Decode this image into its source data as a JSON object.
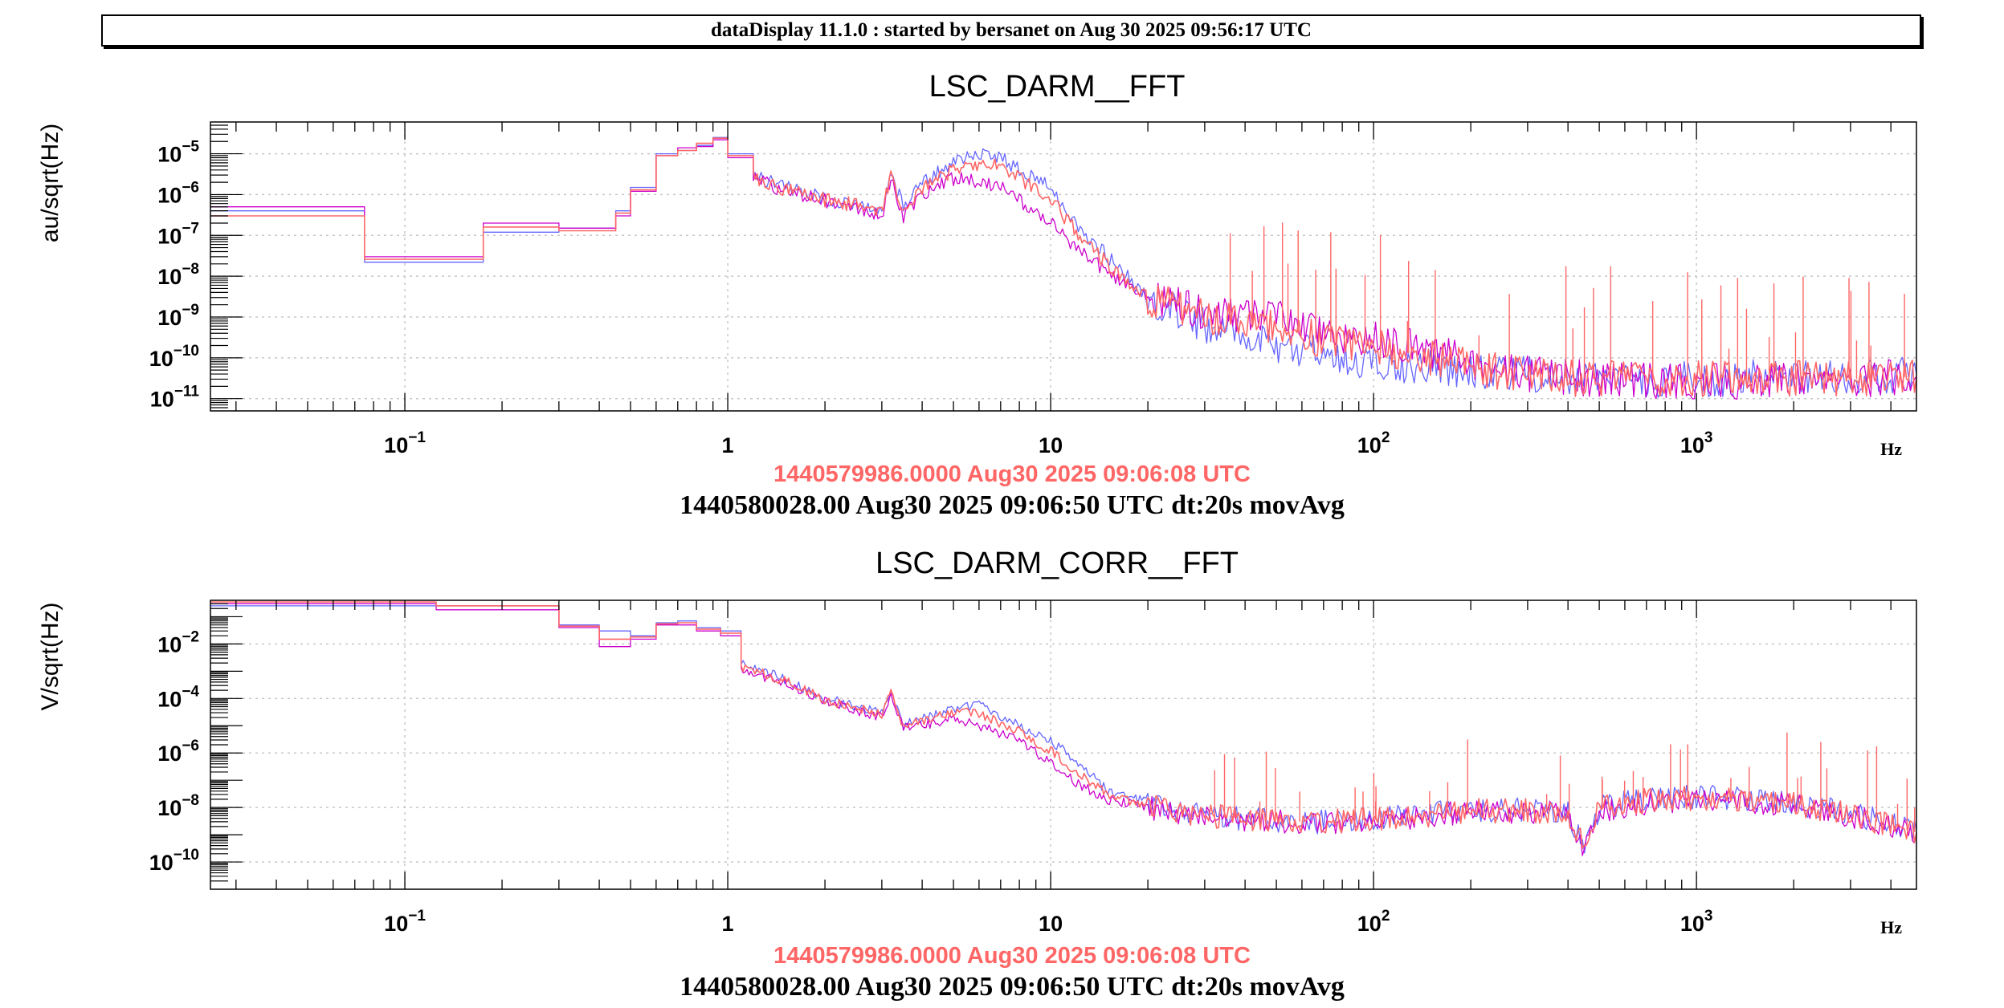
{
  "banner": {
    "text": "dataDisplay 11.1.0 : started by bersanet on Aug 30 2025 09:56:17 UTC"
  },
  "colors": {
    "ref1": "#6666ff",
    "ref2": "#cc00cc",
    "live": "#ff6666",
    "grid": "#c8c8c8",
    "stamp_ref": "#ff6666"
  },
  "chart_data": [
    {
      "type": "line",
      "title": "LSC_DARM__FFT",
      "ylabel": "au/sqrt(Hz)",
      "xlabel": "Hz",
      "xscale": "log",
      "yscale": "log",
      "xlim": [
        0.025,
        4800
      ],
      "ylim": [
        5e-12,
        6e-05
      ],
      "grid": true,
      "x_ticks": [
        {
          "value": 0.1,
          "base": "10",
          "exp": "−1"
        },
        {
          "value": 1,
          "base": "1",
          "exp": ""
        },
        {
          "value": 10,
          "base": "10",
          "exp": ""
        },
        {
          "value": 100,
          "base": "10",
          "exp": "2"
        },
        {
          "value": 1000,
          "base": "10",
          "exp": "3"
        }
      ],
      "y_ticks": [
        {
          "value": 1e-05,
          "base": "10",
          "exp": "−5"
        },
        {
          "value": 1e-06,
          "base": "10",
          "exp": "−6"
        },
        {
          "value": 1e-07,
          "base": "10",
          "exp": "−7"
        },
        {
          "value": 1e-08,
          "base": "10",
          "exp": "−8"
        },
        {
          "value": 1e-09,
          "base": "10",
          "exp": "−9"
        },
        {
          "value": 1e-10,
          "base": "10",
          "exp": "−10"
        },
        {
          "value": 1e-11,
          "base": "10",
          "exp": "−11"
        }
      ],
      "ref_timestamp": "1440579986.0000 Aug30 2025 09:06:08 UTC",
      "timestamp": "1440580028.00 Aug30 2025 09:06:50 UTC dt:20s movAvg",
      "series": [
        {
          "color": "#6666ff",
          "x": [
            0.025,
            0.0625,
            0.075,
            0.125,
            0.175,
            0.225,
            0.3,
            0.4,
            0.45,
            0.5,
            0.6,
            0.7,
            0.8,
            0.9,
            1,
            1.2,
            1.5,
            2,
            2.5,
            3,
            3.2,
            3.5,
            4,
            5,
            6,
            7,
            8,
            10,
            12,
            15,
            20,
            30,
            50,
            70,
            100,
            150,
            200,
            300,
            500,
            1000,
            2000,
            3000,
            4800
          ],
          "y": [
            4e-07,
            4e-07,
            2.2e-08,
            2.2e-08,
            1.2e-07,
            1.2e-07,
            1.5e-07,
            1.5e-07,
            4e-07,
            1.5e-06,
            1e-05,
            1.2e-05,
            1.6e-05,
            2.5e-05,
            1e-05,
            3e-06,
            1.5e-06,
            8e-07,
            6e-07,
            4e-07,
            3e-06,
            5e-07,
            2e-06,
            6e-06,
            1e-05,
            8e-06,
            4e-06,
            1.5e-06,
            2e-07,
            3e-08,
            3e-09,
            6e-10,
            2e-10,
            1.2e-10,
            7e-11,
            6e-11,
            5e-11,
            4e-11,
            3e-11,
            3e-11,
            3.5e-11,
            3.5e-11,
            4e-11
          ]
        },
        {
          "color": "#cc00cc",
          "x": [
            0.025,
            0.0625,
            0.075,
            0.125,
            0.175,
            0.225,
            0.3,
            0.4,
            0.45,
            0.5,
            0.6,
            0.7,
            0.8,
            0.9,
            1,
            1.2,
            1.5,
            2,
            2.5,
            3,
            3.2,
            3.5,
            4,
            5,
            6,
            7,
            8,
            10,
            12,
            15,
            20,
            30,
            50,
            70,
            100,
            150,
            200,
            300,
            500,
            1000,
            2000,
            3000,
            4800
          ],
          "y": [
            5e-07,
            5e-07,
            3e-08,
            3e-08,
            2e-07,
            2e-07,
            1.5e-07,
            1.5e-07,
            3e-07,
            1.2e-06,
            9e-06,
            1.4e-05,
            1.5e-05,
            2.2e-05,
            8e-06,
            2.5e-06,
            1.2e-06,
            7e-07,
            5e-07,
            3e-07,
            2.5e-06,
            3e-07,
            1e-06,
            2.5e-06,
            2e-06,
            1.5e-06,
            7e-07,
            2e-07,
            5e-08,
            1.2e-08,
            3e-09,
            1.3e-09,
            1e-09,
            4e-10,
            3e-10,
            1.6e-10,
            8e-11,
            4e-11,
            3e-11,
            2.5e-11,
            3e-11,
            3e-11,
            3.5e-11
          ]
        },
        {
          "color": "#ff6666",
          "x": [
            0.025,
            0.0625,
            0.075,
            0.125,
            0.175,
            0.225,
            0.3,
            0.4,
            0.45,
            0.5,
            0.6,
            0.7,
            0.8,
            0.9,
            1,
            1.2,
            1.5,
            2,
            2.5,
            3,
            3.2,
            3.5,
            4,
            5,
            6,
            7,
            8,
            10,
            12,
            15,
            20,
            30,
            50,
            70,
            100,
            150,
            200,
            300,
            500,
            1000,
            2000,
            3000,
            4800
          ],
          "y": [
            3e-07,
            3e-07,
            2.6e-08,
            2.6e-08,
            1.6e-07,
            1.6e-07,
            1.3e-07,
            1.3e-07,
            3.5e-07,
            1.3e-06,
            9e-06,
            1.2e-05,
            1.8e-05,
            2.4e-05,
            9e-06,
            2.8e-06,
            1.3e-06,
            7.5e-07,
            5.5e-07,
            3.5e-07,
            2.8e-06,
            4e-07,
            1.5e-06,
            4e-06,
            5e-06,
            5e-06,
            2.5e-06,
            8e-07,
            1.2e-07,
            2e-08,
            3e-09,
            1e-09,
            6e-10,
            2.5e-10,
            2e-10,
            1e-10,
            6e-11,
            3.5e-11,
            3e-11,
            3e-11,
            3e-11,
            3e-11,
            3.5e-11
          ]
        }
      ]
    },
    {
      "type": "line",
      "title": "LSC_DARM_CORR__FFT",
      "ylabel": "V/sqrt(Hz)",
      "xlabel": "Hz",
      "xscale": "log",
      "yscale": "log",
      "xlim": [
        0.025,
        4800
      ],
      "ylim": [
        1e-11,
        0.4
      ],
      "grid": true,
      "x_ticks": [
        {
          "value": 0.1,
          "base": "10",
          "exp": "−1"
        },
        {
          "value": 1,
          "base": "1",
          "exp": ""
        },
        {
          "value": 10,
          "base": "10",
          "exp": ""
        },
        {
          "value": 100,
          "base": "10",
          "exp": "2"
        },
        {
          "value": 1000,
          "base": "10",
          "exp": "3"
        }
      ],
      "y_ticks": [
        {
          "value": 0.01,
          "base": "10",
          "exp": "−2"
        },
        {
          "value": 0.0001,
          "base": "10",
          "exp": "−4"
        },
        {
          "value": 1e-06,
          "base": "10",
          "exp": "−6"
        },
        {
          "value": 1e-08,
          "base": "10",
          "exp": "−8"
        },
        {
          "value": 1e-10,
          "base": "10",
          "exp": "−10"
        }
      ],
      "ref_timestamp": "1440579986.0000 Aug30 2025 09:06:08 UTC",
      "timestamp": "1440580028.00 Aug30 2025 09:06:50 UTC dt:20s movAvg",
      "series": [
        {
          "color": "#6666ff",
          "x": [
            0.025,
            0.075,
            0.125,
            0.225,
            0.3,
            0.4,
            0.5,
            0.6,
            0.7,
            0.8,
            0.95,
            1.1,
            1.5,
            2,
            3,
            3.2,
            3.5,
            4,
            5,
            6,
            8,
            10,
            12,
            15,
            20,
            30,
            50,
            70,
            100,
            150,
            200,
            300,
            400,
            450,
            500,
            700,
            1000,
            2000,
            3000,
            4800
          ],
          "y": [
            0.25,
            0.25,
            0.25,
            0.25,
            0.05,
            0.03,
            0.02,
            0.06,
            0.07,
            0.04,
            0.03,
            0.002,
            0.0005,
            0.0001,
            3e-05,
            0.0002,
            1e-05,
            2e-05,
            4e-05,
            6e-05,
            1e-05,
            3e-06,
            5e-07,
            4e-08,
            1.5e-08,
            5e-09,
            3e-09,
            3e-09,
            4e-09,
            6e-09,
            8e-09,
            8e-09,
            7e-09,
            3e-10,
            1e-08,
            2e-08,
            2.5e-08,
            1.5e-08,
            6e-09,
            1.5e-09
          ]
        },
        {
          "color": "#cc00cc",
          "x": [
            0.025,
            0.075,
            0.125,
            0.225,
            0.3,
            0.4,
            0.5,
            0.6,
            0.7,
            0.8,
            0.95,
            1.1,
            1.5,
            2,
            3,
            3.2,
            3.5,
            4,
            5,
            6,
            8,
            10,
            12,
            15,
            20,
            30,
            50,
            70,
            100,
            150,
            200,
            300,
            400,
            450,
            500,
            700,
            1000,
            2000,
            3000,
            4800
          ],
          "y": [
            0.3,
            0.3,
            0.18,
            0.18,
            0.04,
            0.008,
            0.015,
            0.05,
            0.05,
            0.03,
            0.02,
            0.001,
            0.0004,
            8e-05,
            2e-05,
            0.00015,
            8e-06,
            1e-05,
            2e-05,
            1e-05,
            3e-06,
            4e-07,
            8e-08,
            2e-08,
            1e-08,
            4e-09,
            3e-09,
            2.5e-09,
            3e-09,
            5e-09,
            7e-09,
            7e-09,
            6e-09,
            2e-10,
            8e-09,
            1.5e-08,
            2e-08,
            1.2e-08,
            5e-09,
            1e-09
          ]
        },
        {
          "color": "#ff6666",
          "x": [
            0.025,
            0.075,
            0.125,
            0.225,
            0.3,
            0.4,
            0.5,
            0.6,
            0.7,
            0.8,
            0.95,
            1.1,
            1.5,
            2,
            3,
            3.2,
            3.5,
            4,
            5,
            6,
            8,
            10,
            12,
            15,
            20,
            30,
            50,
            70,
            100,
            150,
            200,
            300,
            400,
            450,
            500,
            700,
            1000,
            2000,
            3000,
            4800
          ],
          "y": [
            0.35,
            0.35,
            0.25,
            0.25,
            0.045,
            0.015,
            0.018,
            0.055,
            0.06,
            0.035,
            0.025,
            0.0015,
            0.00045,
            9e-05,
            2.5e-05,
            0.00018,
            9e-06,
            1.5e-05,
            3e-05,
            3e-05,
            6e-06,
            1.2e-06,
            2e-07,
            3e-08,
            1.2e-08,
            5e-09,
            3e-09,
            3e-09,
            3.5e-09,
            5.5e-09,
            7.5e-09,
            7.5e-09,
            6.5e-09,
            3e-10,
            9e-09,
            1.8e-08,
            2.2e-08,
            1.4e-08,
            5.5e-09,
            1.2e-09
          ]
        }
      ]
    }
  ]
}
